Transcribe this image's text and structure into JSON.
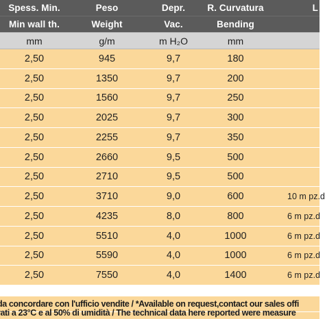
{
  "table": {
    "header_row_1": [
      "Spess. Min.",
      "Peso",
      "Depr.",
      "R. Curvatura",
      "L"
    ],
    "header_row_2": [
      "Min wall th.",
      "Weight",
      "Vac.",
      "Bending",
      ""
    ],
    "units_row": [
      "mm",
      "g/m",
      "m H₂O",
      "mm",
      ""
    ],
    "rows": [
      [
        "2,50",
        "945",
        "9,7",
        "180",
        ""
      ],
      [
        "2,50",
        "1350",
        "9,7",
        "200",
        ""
      ],
      [
        "2,50",
        "1560",
        "9,7",
        "250",
        ""
      ],
      [
        "2,50",
        "2025",
        "9,7",
        "300",
        ""
      ],
      [
        "2,50",
        "2255",
        "9,7",
        "350",
        ""
      ],
      [
        "2,50",
        "2660",
        "9,5",
        "500",
        ""
      ],
      [
        "2,50",
        "2710",
        "9,5",
        "500",
        ""
      ],
      [
        "2,50",
        "3710",
        "9,0",
        "600",
        "10 m pz.d"
      ],
      [
        "2,50",
        "4235",
        "8,0",
        "800",
        "6 m pz.d"
      ],
      [
        "2,50",
        "5510",
        "4,0",
        "1000",
        "6 m pz.d"
      ],
      [
        "2,50",
        "5590",
        "4,0",
        "1000",
        "6 m pz.d"
      ],
      [
        "2,50",
        "7550",
        "4,0",
        "1400",
        "6 m pz.d"
      ]
    ]
  },
  "footer": {
    "availability_note": "da concordare con l'ufficio vendite / *Available on request,contact our sales offi",
    "measurement_note": "rati a 23°C e al 50% di umidità / The technical data here reported were measure"
  },
  "colors": {
    "header_bg": "#5b5b5b",
    "units_bg": "#d5d5d5",
    "row_bg": "#fbd89a"
  }
}
